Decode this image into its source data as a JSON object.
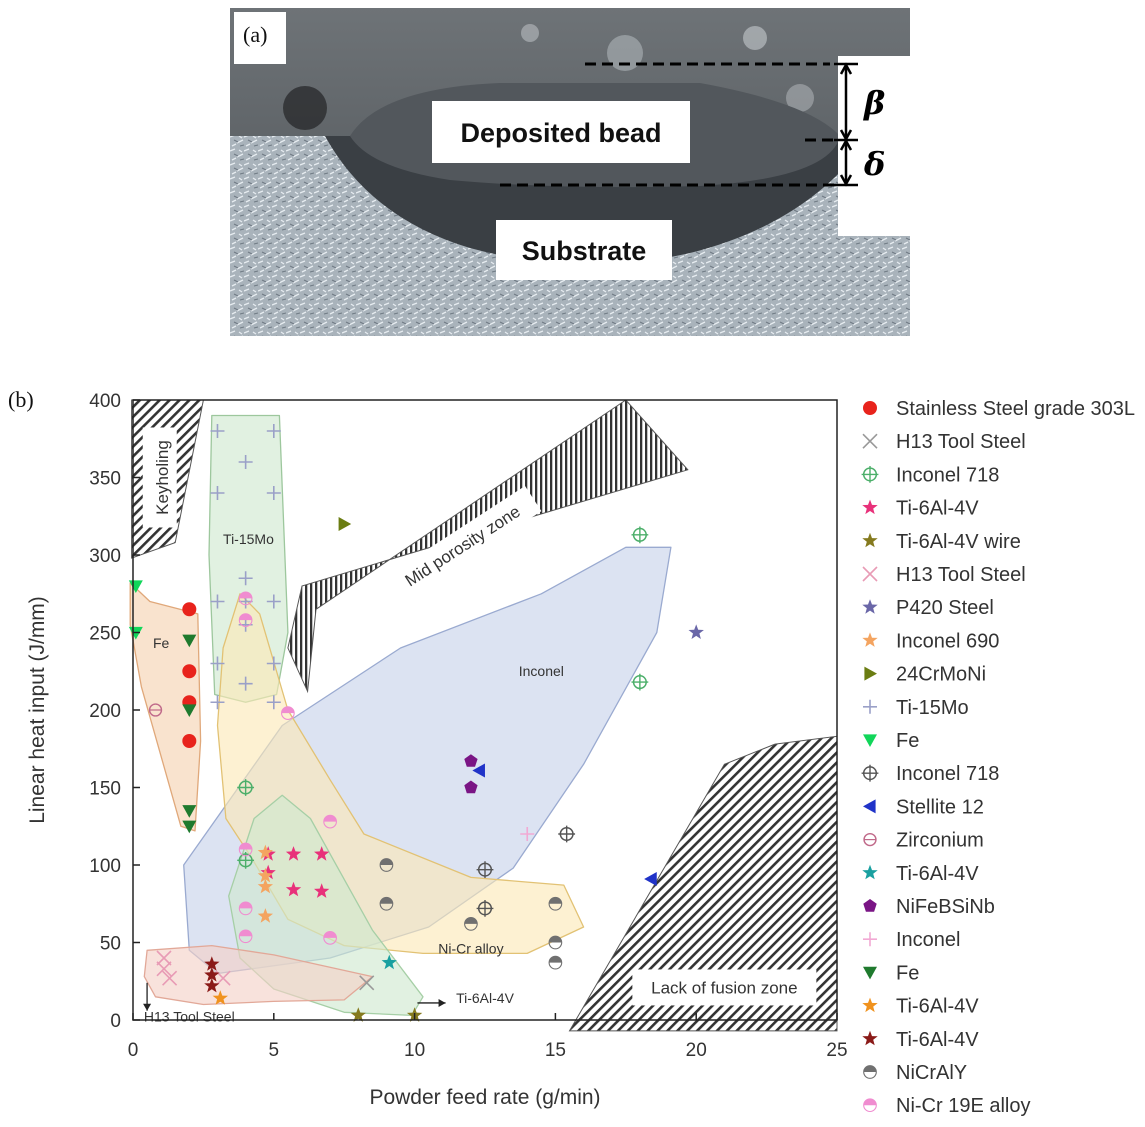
{
  "panel_a": {
    "label": "(a)",
    "bead_label": "Deposited bead",
    "substrate_label": "Substrate",
    "beta_symbol": "β",
    "delta_symbol": "δ"
  },
  "chart_data": {
    "type": "scatter",
    "panel_label": "(b)",
    "xlabel": "Powder feed rate (g/min)",
    "ylabel": "Linear heat input (J/mm)",
    "xlim": [
      0,
      25
    ],
    "ylim": [
      0,
      400
    ],
    "x_ticks": [
      0,
      5,
      10,
      15,
      20,
      25
    ],
    "y_ticks": [
      0,
      50,
      100,
      150,
      200,
      250,
      300,
      350,
      400
    ],
    "grid": false,
    "legend_position": "right-outside",
    "zones": [
      {
        "label": "Keyholing"
      },
      {
        "label": "Mid porosity zone"
      },
      {
        "label": "Lack of fusion zone"
      }
    ],
    "region_labels": [
      {
        "label": "Ti-15Mo",
        "x": 4.1,
        "y": 307
      },
      {
        "label": "Fe",
        "x": 1.0,
        "y": 240
      },
      {
        "label": "Inconel",
        "x": 14.5,
        "y": 222
      },
      {
        "label": "Ni-Cr alloy",
        "x": 12.0,
        "y": 43
      },
      {
        "label": "H13 Tool Steel",
        "x": 2.0,
        "y": -1
      },
      {
        "label": "Ti-6Al-4V",
        "x": 12.5,
        "y": 11
      }
    ],
    "series": [
      {
        "name": "Stainless Steel grade 303L",
        "marker": "circle",
        "color": "#e8231c",
        "points": [
          [
            2,
            265
          ],
          [
            2,
            225
          ],
          [
            2,
            205
          ],
          [
            2,
            180
          ]
        ]
      },
      {
        "name": "H13 Tool Steel",
        "marker": "x",
        "color": "#999999",
        "points": [
          [
            8.3,
            24
          ]
        ]
      },
      {
        "name": "Inconel 718",
        "marker": "circleplus",
        "color": "#4caf6a",
        "points": [
          [
            18,
            313
          ],
          [
            18,
            218
          ],
          [
            4,
            150
          ],
          [
            4,
            103
          ]
        ]
      },
      {
        "name": "Ti-6Al-4V",
        "marker": "star",
        "color": "#e8317a",
        "points": [
          [
            4.8,
            107
          ],
          [
            5.7,
            107
          ],
          [
            6.7,
            107
          ],
          [
            4.8,
            95
          ],
          [
            5.7,
            84
          ],
          [
            6.7,
            83
          ]
        ]
      },
      {
        "name": "Ti-6Al-4V wire",
        "marker": "star",
        "color": "#857a1e",
        "points": [
          [
            8,
            3
          ],
          [
            10,
            3
          ]
        ]
      },
      {
        "name": "H13 Tool Steel",
        "marker": "x",
        "color": "#e89bb5",
        "points": [
          [
            1.1,
            40
          ],
          [
            1.1,
            33
          ],
          [
            1.3,
            27
          ],
          [
            3.2,
            27
          ]
        ]
      },
      {
        "name": "P420 Steel",
        "marker": "star",
        "color": "#6a67a8",
        "points": [
          [
            20,
            250
          ]
        ]
      },
      {
        "name": "Inconel 690",
        "marker": "star",
        "color": "#f4a460",
        "points": [
          [
            4.7,
            108
          ],
          [
            4.7,
            93
          ],
          [
            4.7,
            86
          ],
          [
            4.7,
            67
          ]
        ]
      },
      {
        "name": "24CrMoNi",
        "marker": "triangle-right",
        "color": "#6b7d12",
        "points": [
          [
            7.5,
            320
          ]
        ]
      },
      {
        "name": "Ti-15Mo",
        "marker": "plus",
        "color": "#9aa0c8",
        "points": [
          [
            3,
            380
          ],
          [
            5,
            380
          ],
          [
            3,
            340
          ],
          [
            4,
            360
          ],
          [
            5,
            340
          ],
          [
            4,
            285
          ],
          [
            3,
            270
          ],
          [
            4,
            270
          ],
          [
            5,
            270
          ],
          [
            4,
            255
          ],
          [
            3,
            230
          ],
          [
            5,
            230
          ],
          [
            4,
            217
          ],
          [
            3,
            205
          ],
          [
            5,
            205
          ]
        ]
      },
      {
        "name": "Fe",
        "marker": "triangle-down",
        "color": "#11d65a",
        "points": [
          [
            0.1,
            280
          ],
          [
            0.1,
            250
          ]
        ]
      },
      {
        "name": "Inconel 718",
        "marker": "circleplus",
        "color": "#555555",
        "points": [
          [
            15.4,
            120
          ],
          [
            12.5,
            97
          ],
          [
            12.5,
            72
          ]
        ]
      },
      {
        "name": "Stellite 12",
        "marker": "triangle-left",
        "color": "#2033c8",
        "points": [
          [
            12.3,
            161
          ],
          [
            18.4,
            91
          ]
        ]
      },
      {
        "name": "Zirconium",
        "marker": "circle-open",
        "color": "#c06a8a",
        "points": [
          [
            0.8,
            200
          ]
        ]
      },
      {
        "name": "Ti-6Al-4V",
        "marker": "star",
        "color": "#19a0a0",
        "points": [
          [
            9.1,
            37
          ]
        ]
      },
      {
        "name": "NiFeBSiNb",
        "marker": "pentagon",
        "color": "#7a1585",
        "points": [
          [
            12,
            167
          ],
          [
            12,
            150
          ]
        ]
      },
      {
        "name": "Inconel",
        "marker": "plus",
        "color": "#f2a9d4",
        "points": [
          [
            14,
            120
          ]
        ]
      },
      {
        "name": "Fe",
        "marker": "triangle-down",
        "color": "#1f7a2e",
        "points": [
          [
            2,
            245
          ],
          [
            2,
            200
          ],
          [
            2,
            135
          ],
          [
            2,
            125
          ]
        ]
      },
      {
        "name": "Ti-6Al-4V",
        "marker": "star",
        "color": "#f0921e",
        "points": [
          [
            3.1,
            14
          ]
        ]
      },
      {
        "name": "Ti-6Al-4V",
        "marker": "star",
        "color": "#8a1a18",
        "points": [
          [
            2.8,
            36
          ],
          [
            2.8,
            29
          ],
          [
            2.8,
            22
          ]
        ]
      },
      {
        "name": "NiCrAlY",
        "marker": "half-circle",
        "color": "#707070",
        "points": [
          [
            9,
            100
          ],
          [
            9,
            75
          ],
          [
            12,
            62
          ],
          [
            15,
            75
          ],
          [
            15,
            50
          ],
          [
            15,
            37
          ]
        ]
      },
      {
        "name": "Ni-Cr 19E alloy",
        "marker": "half-circle",
        "color": "#f08cd0",
        "points": [
          [
            4,
            272
          ],
          [
            4,
            258
          ],
          [
            5.5,
            198
          ],
          [
            7,
            128
          ],
          [
            4,
            110
          ],
          [
            4,
            72
          ],
          [
            7,
            53
          ],
          [
            4,
            54
          ]
        ]
      }
    ]
  }
}
